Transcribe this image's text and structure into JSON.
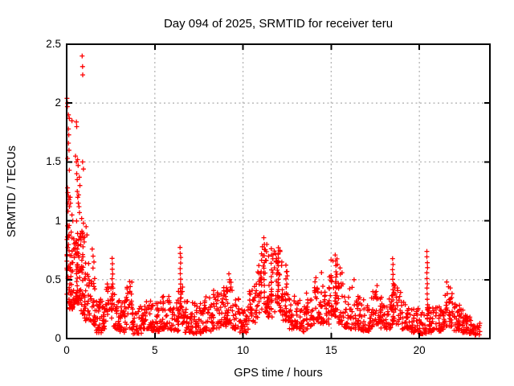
{
  "chart_data": {
    "type": "scatter",
    "title": "Day 094 of 2025, SRMTID for receiver teru",
    "xlabel": "GPS time / hours",
    "ylabel": "SRMTID / TECUs",
    "xlim": [
      0,
      24
    ],
    "ylim": [
      0,
      2.5
    ],
    "xticks": [
      0,
      5,
      10,
      15,
      20
    ],
    "xtick_labels": [
      "0",
      "5",
      "10",
      "15",
      "20"
    ],
    "yticks": [
      0,
      0.5,
      1,
      1.5,
      2,
      2.5
    ],
    "ytick_labels": [
      "0",
      "0.5",
      "1",
      "1.5",
      "2",
      "2.5"
    ],
    "grid": true,
    "legend": "none",
    "marker": "plus",
    "colors": {
      "marker": "#ff0000",
      "grid": "#b3b3b3",
      "axis": "#000000",
      "text": "#000000",
      "background": "#ffffff"
    },
    "series": [
      {
        "name": "SRMTID receiver teru",
        "bands_format": [
          "t_start_h",
          "t_end_h",
          "y_min_TECU",
          "y_max_TECU",
          "n_points"
        ],
        "bands": [
          [
            0.0,
            0.15,
            0.3,
            1.1,
            26
          ],
          [
            0.1,
            0.35,
            0.25,
            0.95,
            34
          ],
          [
            0.3,
            0.6,
            0.25,
            0.9,
            36
          ],
          [
            0.55,
            0.8,
            0.3,
            1.0,
            40
          ],
          [
            0.8,
            1.05,
            0.2,
            0.92,
            36
          ],
          [
            1.0,
            1.3,
            0.15,
            0.7,
            26
          ],
          [
            1.3,
            1.6,
            0.12,
            0.6,
            24
          ],
          [
            1.6,
            2.0,
            0.05,
            0.35,
            30
          ],
          [
            2.0,
            2.3,
            0.08,
            0.42,
            24
          ],
          [
            2.3,
            2.6,
            0.15,
            0.55,
            22
          ],
          [
            2.6,
            3.0,
            0.08,
            0.4,
            28
          ],
          [
            3.0,
            3.3,
            0.05,
            0.33,
            24
          ],
          [
            3.3,
            3.7,
            0.08,
            0.5,
            30
          ],
          [
            3.7,
            4.3,
            0.04,
            0.28,
            40
          ],
          [
            4.3,
            4.8,
            0.08,
            0.33,
            34
          ],
          [
            4.8,
            5.3,
            0.06,
            0.3,
            34
          ],
          [
            5.3,
            5.8,
            0.08,
            0.36,
            34
          ],
          [
            5.8,
            6.35,
            0.06,
            0.33,
            36
          ],
          [
            6.3,
            6.7,
            0.12,
            0.45,
            26
          ],
          [
            6.7,
            7.2,
            0.05,
            0.32,
            34
          ],
          [
            7.2,
            7.7,
            0.04,
            0.3,
            34
          ],
          [
            7.7,
            8.2,
            0.06,
            0.36,
            34
          ],
          [
            8.2,
            8.7,
            0.08,
            0.42,
            34
          ],
          [
            8.7,
            9.1,
            0.1,
            0.45,
            28
          ],
          [
            9.0,
            9.4,
            0.12,
            0.5,
            26
          ],
          [
            9.4,
            9.8,
            0.08,
            0.35,
            26
          ],
          [
            9.8,
            10.3,
            0.05,
            0.28,
            32
          ],
          [
            10.3,
            10.7,
            0.12,
            0.45,
            26
          ],
          [
            10.7,
            11.0,
            0.18,
            0.6,
            22
          ],
          [
            11.0,
            11.4,
            0.22,
            0.8,
            28
          ],
          [
            11.4,
            11.7,
            0.18,
            0.7,
            22
          ],
          [
            11.7,
            12.2,
            0.22,
            0.75,
            34
          ],
          [
            12.2,
            12.6,
            0.15,
            0.58,
            26
          ],
          [
            12.6,
            13.0,
            0.08,
            0.38,
            26
          ],
          [
            13.0,
            13.5,
            0.05,
            0.33,
            32
          ],
          [
            13.5,
            14.0,
            0.08,
            0.4,
            32
          ],
          [
            14.0,
            14.5,
            0.12,
            0.52,
            34
          ],
          [
            14.5,
            14.9,
            0.12,
            0.48,
            28
          ],
          [
            14.9,
            15.4,
            0.18,
            0.68,
            34
          ],
          [
            15.4,
            15.7,
            0.12,
            0.6,
            22
          ],
          [
            15.7,
            16.2,
            0.08,
            0.44,
            32
          ],
          [
            16.2,
            16.7,
            0.08,
            0.4,
            32
          ],
          [
            16.7,
            17.2,
            0.06,
            0.33,
            34
          ],
          [
            17.2,
            17.8,
            0.1,
            0.4,
            40
          ],
          [
            17.8,
            18.4,
            0.08,
            0.36,
            40
          ],
          [
            18.4,
            19.0,
            0.12,
            0.46,
            38
          ],
          [
            19.0,
            19.5,
            0.08,
            0.33,
            32
          ],
          [
            19.5,
            20.0,
            0.05,
            0.26,
            32
          ],
          [
            20.0,
            20.4,
            0.04,
            0.23,
            26
          ],
          [
            20.4,
            21.0,
            0.05,
            0.27,
            38
          ],
          [
            21.0,
            21.4,
            0.06,
            0.28,
            26
          ],
          [
            21.4,
            21.9,
            0.1,
            0.44,
            34
          ],
          [
            21.9,
            22.3,
            0.06,
            0.33,
            28
          ],
          [
            22.3,
            22.7,
            0.05,
            0.26,
            26
          ],
          [
            22.7,
            23.1,
            0.04,
            0.2,
            22
          ],
          [
            23.1,
            23.45,
            0.03,
            0.13,
            18
          ]
        ],
        "spike_columns_format": [
          "t_h",
          "y_min",
          "y_max",
          "n_points"
        ],
        "spike_columns": [
          [
            2.6,
            0.3,
            0.68,
            10
          ],
          [
            6.45,
            0.25,
            0.77,
            13
          ],
          [
            11.2,
            0.3,
            0.85,
            12
          ],
          [
            11.6,
            0.25,
            0.76,
            10
          ],
          [
            12.0,
            0.3,
            0.77,
            10
          ],
          [
            12.45,
            0.2,
            0.62,
            8
          ],
          [
            15.25,
            0.25,
            0.71,
            11
          ],
          [
            18.5,
            0.15,
            0.68,
            13
          ],
          [
            20.45,
            0.2,
            0.74,
            13
          ]
        ],
        "high_points": [
          [
            0.02,
            2.04
          ],
          [
            0.05,
            2.0
          ],
          [
            0.04,
            1.97
          ],
          [
            0.1,
            1.9
          ],
          [
            0.15,
            1.87
          ],
          [
            0.3,
            1.85
          ],
          [
            0.55,
            1.84
          ],
          [
            0.57,
            1.8
          ],
          [
            0.1,
            1.78
          ],
          [
            0.12,
            1.73
          ],
          [
            0.1,
            1.66
          ],
          [
            0.13,
            1.6
          ],
          [
            0.05,
            1.53
          ],
          [
            0.5,
            1.55
          ],
          [
            0.55,
            1.5
          ],
          [
            0.62,
            1.52
          ],
          [
            0.65,
            1.47
          ],
          [
            0.9,
            1.5
          ],
          [
            0.95,
            1.44
          ],
          [
            0.15,
            1.43
          ],
          [
            0.57,
            1.4
          ],
          [
            0.6,
            1.35
          ],
          [
            0.72,
            1.37
          ],
          [
            0.75,
            1.3
          ],
          [
            0.88,
            2.4
          ],
          [
            0.9,
            2.31
          ],
          [
            0.91,
            2.24
          ],
          [
            0.05,
            1.28
          ],
          [
            0.07,
            1.24
          ],
          [
            0.1,
            1.21
          ],
          [
            0.13,
            1.18
          ],
          [
            0.08,
            1.15
          ],
          [
            0.16,
            1.12
          ],
          [
            0.2,
            1.2
          ],
          [
            0.22,
            1.15
          ],
          [
            0.6,
            1.25
          ],
          [
            0.63,
            1.2
          ],
          [
            0.66,
            1.15
          ],
          [
            0.7,
            1.12
          ],
          [
            0.73,
            1.07
          ],
          [
            0.68,
            1.22
          ],
          [
            0.3,
            1.05
          ],
          [
            0.35,
            1.0
          ],
          [
            0.85,
            1.02
          ],
          [
            0.95,
            0.98
          ],
          [
            1.1,
            0.95
          ],
          [
            1.15,
            0.88
          ],
          [
            1.45,
            0.76
          ],
          [
            1.5,
            0.7
          ],
          [
            1.55,
            0.65
          ],
          [
            9.2,
            0.55
          ],
          [
            9.25,
            0.5
          ],
          [
            10.9,
            0.62
          ],
          [
            11.05,
            0.72
          ],
          [
            11.1,
            0.78
          ],
          [
            11.35,
            0.8
          ],
          [
            11.45,
            0.7
          ],
          [
            11.85,
            0.72
          ],
          [
            11.9,
            0.68
          ],
          [
            12.1,
            0.74
          ],
          [
            12.2,
            0.65
          ],
          [
            14.45,
            0.56
          ],
          [
            15.1,
            0.66
          ],
          [
            15.35,
            0.63
          ],
          [
            15.5,
            0.6
          ],
          [
            16.3,
            0.5
          ],
          [
            17.6,
            0.45
          ],
          [
            21.55,
            0.48
          ],
          [
            21.65,
            0.44
          ]
        ]
      }
    ]
  }
}
